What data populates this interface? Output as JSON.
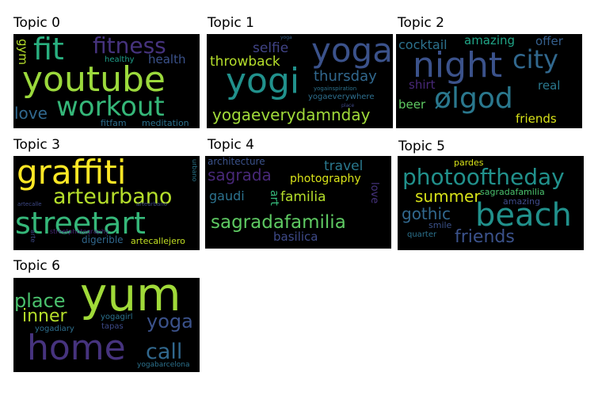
{
  "topics": [
    {
      "title": "Topic 0",
      "words": [
        "youtube",
        "workout",
        "fit",
        "fitness",
        "health",
        "gym",
        "healthy",
        "love",
        "fitfam",
        "meditation"
      ],
      "colors": [
        "#9bd93c",
        "#35b779",
        "#29af7f",
        "#46337e",
        "#3b528b",
        "#b5de2b",
        "#1f9e89",
        "#31688e",
        "#2e6f8e",
        "#2c728e"
      ]
    },
    {
      "title": "Topic 1",
      "words": [
        "yogi",
        "yoga",
        "yogaeverydamnday",
        "throwback",
        "selfie",
        "thursday",
        "yogaeverywhere",
        "yogainspiration",
        "yoga",
        "place"
      ],
      "colors": [
        "#21918c",
        "#3b528b",
        "#a0da39",
        "#b5de2b",
        "#414487",
        "#31688e",
        "#2e6f8e",
        "#2c728e",
        "#355f8d",
        "#3e4a89"
      ]
    },
    {
      "title": "Topic 2",
      "words": [
        "night",
        "ølgod",
        "city",
        "cocktail",
        "amazing",
        "offer",
        "shirt",
        "beer",
        "real",
        "friends"
      ],
      "colors": [
        "#3b528b",
        "#2a788e",
        "#31688e",
        "#2c728e",
        "#20a486",
        "#355f8d",
        "#482878",
        "#5ec962",
        "#2a788e",
        "#d8e219"
      ]
    },
    {
      "title": "Topic 3",
      "words": [
        "graffiti",
        "streetart",
        "arteurbano",
        "digerible",
        "artecallejero",
        "streetphotography",
        "artecalle",
        "arteurbano",
        "urbano",
        "arte"
      ],
      "colors": [
        "#fde725",
        "#35b779",
        "#b5de2b",
        "#31688e",
        "#c2df23",
        "#482878",
        "#3e4a89",
        "#3e4a89",
        "#2a788e",
        "#3e4a89"
      ]
    },
    {
      "title": "Topic 4",
      "words": [
        "sagradafamilia",
        "sagrada",
        "familia",
        "photography",
        "travel",
        "gaudi",
        "architecture",
        "art",
        "love",
        "basilica"
      ],
      "colors": [
        "#5ec962",
        "#482878",
        "#b5de2b",
        "#d8e219",
        "#2a788e",
        "#2c728e",
        "#3b528b",
        "#35b779",
        "#46337e",
        "#3e4a89"
      ]
    },
    {
      "title": "Topic 5",
      "words": [
        "beach",
        "photooftheday",
        "summer",
        "friends",
        "gothic",
        "sagradafamilia",
        "amazing",
        "pardes",
        "smile",
        "quarter"
      ],
      "colors": [
        "#21918c",
        "#21918c",
        "#d8e219",
        "#3b528b",
        "#31688e",
        "#4ac16d",
        "#3e4a89",
        "#d8e219",
        "#3b528b",
        "#2c728e"
      ]
    },
    {
      "title": "Topic 6",
      "words": [
        "yum",
        "home",
        "place",
        "inner",
        "yoga",
        "call",
        "yogagirl",
        "tapas",
        "yogadiary",
        "yogabarcelona"
      ],
      "colors": [
        "#a0da39",
        "#46337e",
        "#4ac16d",
        "#b5de2b",
        "#3b528b",
        "#31688e",
        "#2c728e",
        "#3e4a89",
        "#2e6f8e",
        "#2c728e"
      ]
    }
  ]
}
